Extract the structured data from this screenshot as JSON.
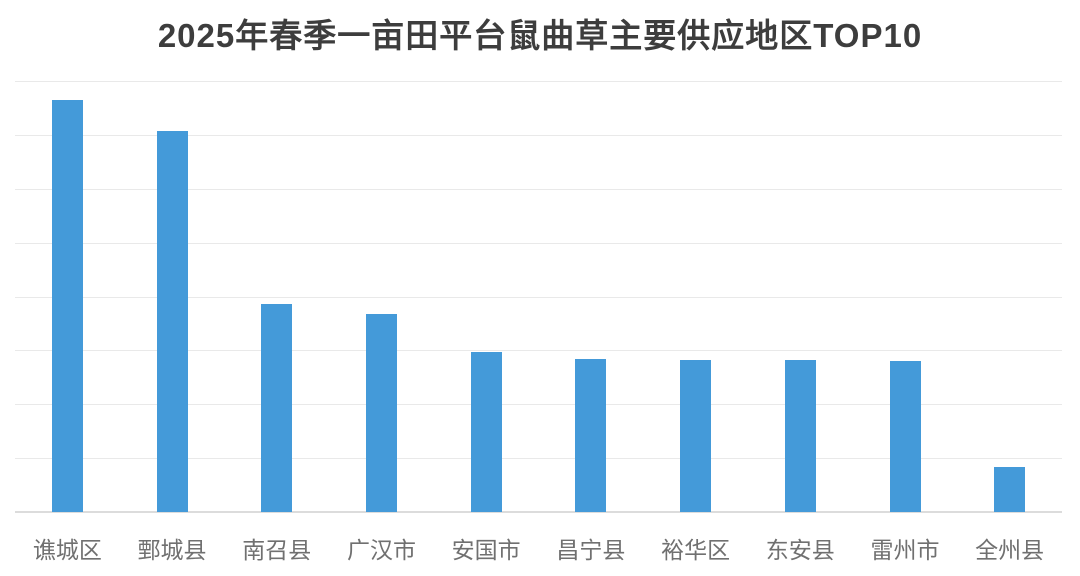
{
  "chart": {
    "title": "2025年春季一亩田平台鼠曲草主要供应地区TOP10"
  },
  "chart_data": {
    "type": "bar",
    "title": "2025年春季一亩田平台鼠曲草主要供应地区TOP10",
    "categories": [
      "谯城区",
      "鄄城县",
      "南召县",
      "广汉市",
      "安国市",
      "昌宁县",
      "裕华区",
      "东安县",
      "雷州市",
      "全州县"
    ],
    "values": [
      7.64,
      7.08,
      3.86,
      3.67,
      2.98,
      2.85,
      2.82,
      2.83,
      2.81,
      0.84
    ],
    "xlabel": "",
    "ylabel": "",
    "ylim": [
      0,
      8
    ],
    "gridline_intervals": 8,
    "grid": "horizontal",
    "legend": "none",
    "y_tick_labels_visible": false,
    "value_note": "no y-axis tick labels visible; values estimated in gridline units (1 unit = 1 horizontal gridline interval)"
  },
  "colors": {
    "bar": "#449AD9",
    "title_text": "#3D3D3D",
    "axis_label_text": "#707070",
    "gridline": "#E9E9E9",
    "axis_line": "#DCDCDC",
    "background": "#FFFFFF"
  }
}
